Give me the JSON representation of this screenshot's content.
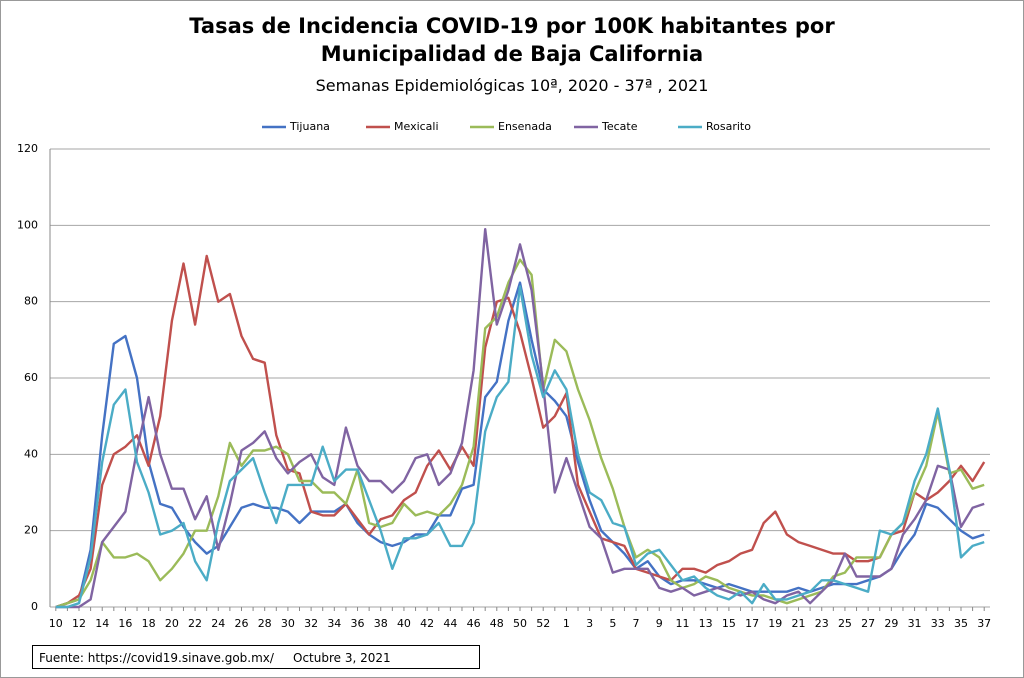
{
  "chart_data": {
    "type": "line",
    "title": "Tasas de Incidencia COVID-19 por 100K habitantes por Municipalidad de Baja California",
    "subtitle": "Semanas Epidemiológicas 10ª, 2020  -  37ª , 2021",
    "source": "Fuente: https://covid19.sinave.gob.mx/     Octubre 3, 2021",
    "categories": [
      "10",
      null,
      "12",
      null,
      "14",
      null,
      "16",
      null,
      "18",
      null,
      "20",
      null,
      "22",
      null,
      "24",
      null,
      "26",
      null,
      "28",
      null,
      "30",
      null,
      "32",
      null,
      "34",
      null,
      "36",
      null,
      "38",
      null,
      "40",
      null,
      "42",
      null,
      "44",
      null,
      "46",
      null,
      "48",
      null,
      "50",
      null,
      "52",
      null,
      "1",
      null,
      "3",
      null,
      "5",
      null,
      "7",
      null,
      "9",
      null,
      "11",
      null,
      "13",
      null,
      "15",
      null,
      "17",
      null,
      "19",
      null,
      "21",
      null,
      "23",
      null,
      "25",
      null,
      "27",
      null,
      "29",
      null,
      "31",
      null,
      "33",
      null,
      "35",
      null,
      "37"
    ],
    "series": [
      {
        "name": "Tijuana",
        "color": "#4472c4",
        "values": [
          0,
          1,
          2,
          15,
          45,
          69,
          71,
          60,
          38,
          27,
          26,
          21,
          17,
          14,
          16,
          21,
          26,
          27,
          26,
          26,
          25,
          22,
          25,
          25,
          25,
          27,
          22,
          19,
          17,
          16,
          17,
          19,
          19,
          24,
          24,
          31,
          32,
          55,
          59,
          75,
          85,
          70,
          57,
          54,
          50,
          38,
          28,
          20,
          17,
          14,
          10,
          12,
          8,
          6,
          7,
          7,
          6,
          5,
          6,
          5,
          4,
          4,
          4,
          4,
          5,
          4,
          5,
          6,
          6,
          6,
          7,
          8,
          10,
          15,
          19,
          27,
          26,
          23,
          20,
          18,
          19
        ]
      },
      {
        "name": "Mexicali",
        "color": "#c0504d",
        "values": [
          0,
          1,
          3,
          10,
          32,
          40,
          42,
          45,
          37,
          50,
          75,
          90,
          74,
          92,
          80,
          82,
          71,
          65,
          64,
          45,
          36,
          35,
          25,
          24,
          24,
          27,
          23,
          19,
          23,
          24,
          28,
          30,
          37,
          41,
          36,
          42,
          37,
          68,
          80,
          81,
          72,
          60,
          47,
          50,
          56,
          32,
          25,
          18,
          17,
          16,
          10,
          9,
          8,
          7,
          10,
          10,
          9,
          11,
          12,
          14,
          15,
          22,
          25,
          19,
          17,
          16,
          15,
          14,
          14,
          12,
          12,
          13,
          19,
          20,
          30,
          28,
          30,
          33,
          37,
          33,
          38
        ]
      },
      {
        "name": "Ensenada",
        "color": "#9bbb59",
        "values": [
          0,
          1,
          2,
          7,
          17,
          13,
          13,
          14,
          12,
          7,
          10,
          14,
          20,
          20,
          29,
          43,
          37,
          41,
          41,
          42,
          40,
          33,
          33,
          30,
          30,
          27,
          36,
          22,
          21,
          22,
          27,
          24,
          25,
          24,
          27,
          32,
          42,
          73,
          76,
          85,
          91,
          87,
          57,
          70,
          67,
          57,
          49,
          39,
          31,
          21,
          13,
          15,
          13,
          7,
          5,
          6,
          8,
          7,
          5,
          4,
          3,
          3,
          2,
          1,
          2,
          3,
          4,
          8,
          9,
          13,
          13,
          13,
          19,
          22,
          30,
          37,
          51,
          35,
          36,
          31,
          32
        ]
      },
      {
        "name": "Tecate",
        "color": "#8064a2",
        "values": [
          0,
          0,
          0,
          2,
          17,
          21,
          25,
          41,
          55,
          40,
          31,
          31,
          23,
          29,
          15,
          27,
          41,
          43,
          46,
          39,
          35,
          38,
          40,
          34,
          32,
          47,
          37,
          33,
          33,
          30,
          33,
          39,
          40,
          32,
          35,
          43,
          62,
          99,
          74,
          83,
          95,
          83,
          58,
          30,
          39,
          30,
          21,
          18,
          9,
          10,
          10,
          10,
          5,
          4,
          5,
          3,
          4,
          5,
          4,
          3,
          4,
          2,
          1,
          3,
          4,
          1,
          4,
          7,
          14,
          8,
          8,
          8,
          10,
          19,
          23,
          28,
          37,
          36,
          21,
          26,
          27
        ]
      },
      {
        "name": "Rosarito",
        "color": "#4bacc6",
        "values": [
          0,
          0,
          1,
          13,
          38,
          53,
          57,
          38,
          30,
          19,
          20,
          22,
          12,
          7,
          22,
          33,
          36,
          39,
          30,
          22,
          32,
          32,
          32,
          42,
          33,
          36,
          36,
          28,
          20,
          10,
          18,
          18,
          19,
          22,
          16,
          16,
          22,
          46,
          55,
          59,
          84,
          66,
          55,
          62,
          57,
          40,
          30,
          28,
          22,
          21,
          11,
          14,
          15,
          11,
          7,
          8,
          5,
          3,
          2,
          4,
          1,
          6,
          2,
          2,
          3,
          4,
          7,
          7,
          6,
          5,
          4,
          20,
          19,
          22,
          33,
          40,
          52,
          36,
          13,
          16,
          17
        ]
      }
    ],
    "ylim": [
      0,
      120
    ],
    "yticks": [
      0,
      20,
      40,
      60,
      80,
      100,
      120
    ],
    "grid": true,
    "legend": "top"
  }
}
